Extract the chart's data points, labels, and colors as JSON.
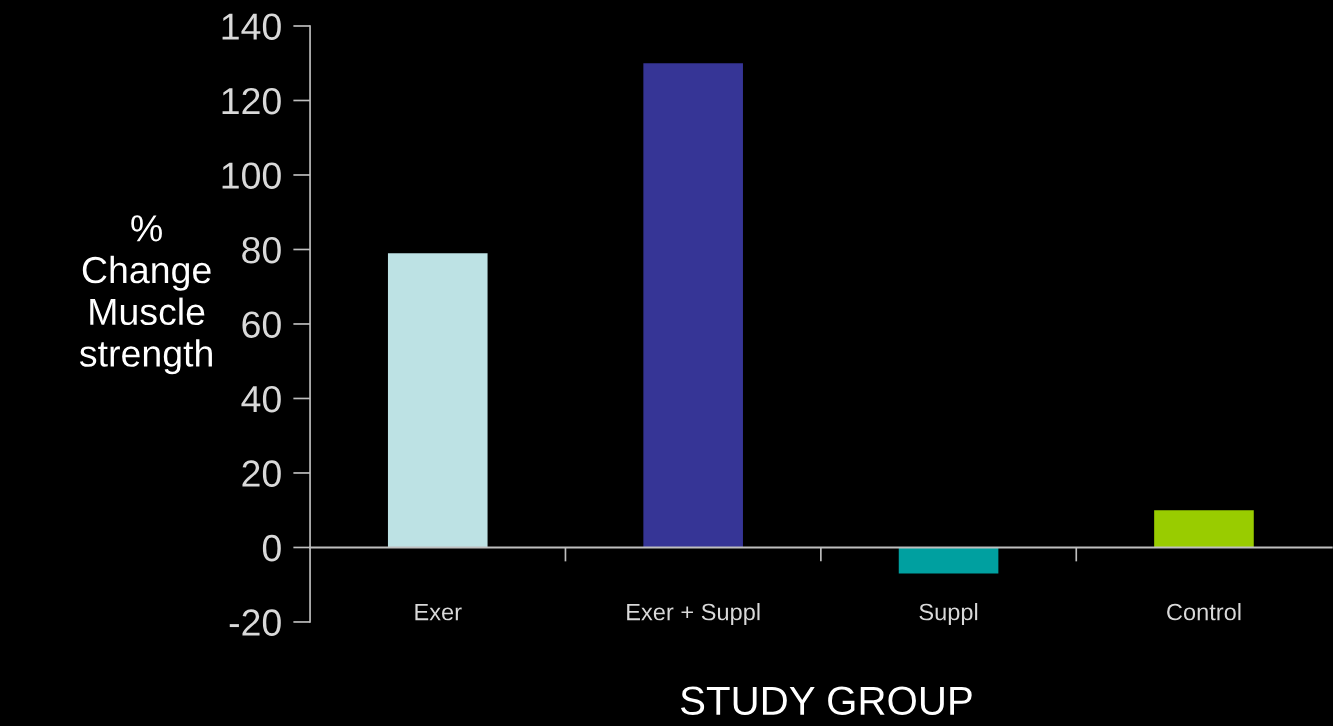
{
  "chart_data": {
    "type": "bar",
    "xlabel": "STUDY GROUP",
    "ylabel": "%\nChange\nMuscle\nstrength",
    "categories": [
      "Exer",
      "Exer + Suppl",
      "Suppl",
      "Control"
    ],
    "values": [
      79,
      130,
      -7,
      10
    ],
    "colors": [
      "#bde2e4",
      "#363596",
      "#00a0a0",
      "#99cc00"
    ],
    "ylim": [
      -20,
      140
    ],
    "yticks": [
      -20,
      0,
      20,
      40,
      60,
      80,
      100,
      120,
      140
    ],
    "grid": false,
    "legend": false
  }
}
